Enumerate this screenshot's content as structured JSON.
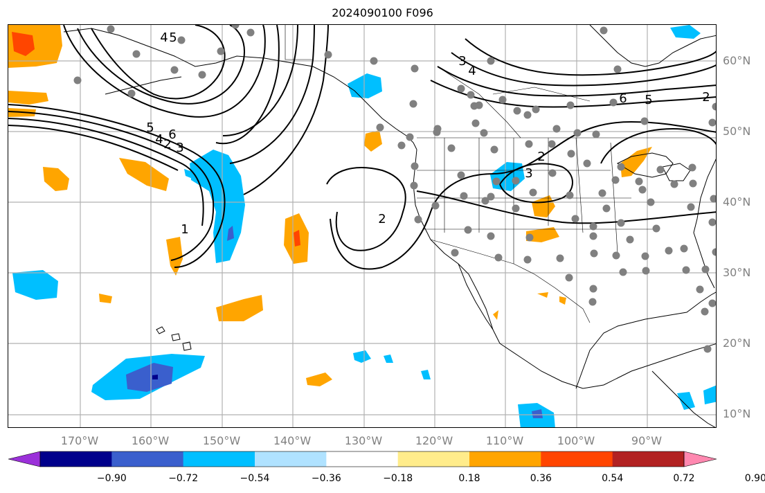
{
  "title": "2024090100 F096",
  "lat_labels": [
    "60°N",
    "50°N",
    "40°N",
    "30°N",
    "20°N",
    "10°N"
  ],
  "lon_labels": [
    "170°W",
    "160°W",
    "150°W",
    "140°W",
    "130°W",
    "120°W",
    "110°W",
    "100°W",
    "90°W"
  ],
  "contour_labels": [
    "5",
    "4",
    "6",
    "5",
    "4",
    "2",
    "3",
    "1",
    "2",
    "2",
    "3",
    "3",
    "4",
    "6",
    "5",
    "2"
  ],
  "colorbar": {
    "tick_labels": [
      "−0.90",
      "−0.72",
      "−0.54",
      "−0.36",
      "−0.18",
      "0.18",
      "0.36",
      "0.54",
      "0.72",
      "0.90"
    ],
    "colors": [
      "#9b30d9",
      "#00008b",
      "#3a5fcd",
      "#00bfff",
      "#b0e2ff",
      "#ffffff",
      "#ffec8b",
      "#ffa500",
      "#ff4500",
      "#b22222",
      "#ff88b0"
    ]
  }
}
